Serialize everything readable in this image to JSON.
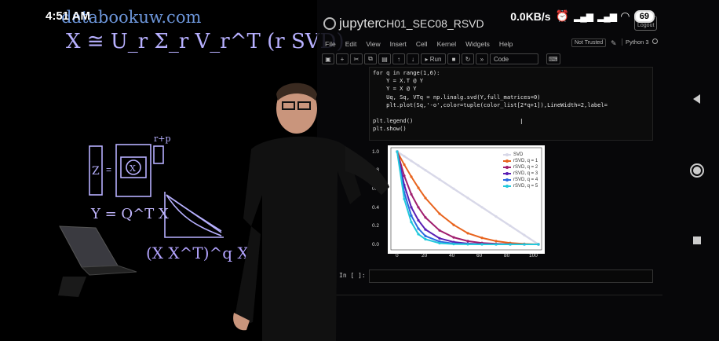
{
  "status_bar": {
    "time": "4:51 AM",
    "speed": "0.0KB/s",
    "battery": "69"
  },
  "lightboard": {
    "url_text": "databookuw.com",
    "svd_equation": "X ≅ U_r Σ_r V_r^T  (r SVD)",
    "qr_equation": "Y = Q^T X",
    "power_text": "(X X^T)^q X",
    "r_plus_p": "r+p"
  },
  "jupyter": {
    "logo_text": "jupyter",
    "notebook_title": "CH01_SEC08_RSVD",
    "logout_label": "Logout",
    "menu": [
      "File",
      "Edit",
      "View",
      "Insert",
      "Cell",
      "Kernel",
      "Widgets",
      "Help"
    ],
    "not_trusted": "Not Trusted",
    "kernel_name": "Python 3",
    "toolbar": {
      "run_label": "Run",
      "cell_type": "Code"
    },
    "empty_prompt": "In [ ]:",
    "code_lines": [
      "for q in range(1,6):",
      "    Y = X.T @ Y",
      "    Y = X @ Y",
      "    Uq, Sq, VTq = np.linalg.svd(Y,full_matrices=0)",
      "    plt.plot(Sq,'-o',color=tuple(color_list[2*q+1]),LineWidth=2,label=",
      "",
      "plt.legend()",
      "plt.show()"
    ]
  },
  "chart_data": {
    "type": "line",
    "xlim": [
      0,
      100
    ],
    "ylim": [
      0,
      1.0
    ],
    "xticks": [
      "0",
      "20",
      "40",
      "60",
      "80",
      "100"
    ],
    "yticks": [
      "0.0",
      "0.2",
      "0.4",
      "0.6",
      "0.8",
      "1.0"
    ],
    "legend_position": "upper-right",
    "x": [
      0,
      5,
      10,
      15,
      20,
      30,
      40,
      50,
      60,
      70,
      80,
      90,
      100
    ],
    "series": [
      {
        "name": "SVD",
        "color": "#d8d8e8",
        "values": [
          1.0,
          0.95,
          0.9,
          0.85,
          0.8,
          0.7,
          0.6,
          0.5,
          0.4,
          0.3,
          0.2,
          0.1,
          0.0
        ]
      },
      {
        "name": "rSVD, q = 1",
        "color": "#e8641e",
        "values": [
          1.0,
          0.86,
          0.73,
          0.61,
          0.5,
          0.33,
          0.21,
          0.12,
          0.07,
          0.035,
          0.015,
          0.005,
          0.0
        ]
      },
      {
        "name": "rSVD, q = 2",
        "color": "#a01e6e",
        "values": [
          1.0,
          0.74,
          0.54,
          0.4,
          0.29,
          0.15,
          0.075,
          0.035,
          0.015,
          0.006,
          0.002,
          0.0005,
          0.0
        ]
      },
      {
        "name": "rSVD, q = 3",
        "color": "#5a1eb4",
        "values": [
          1.0,
          0.64,
          0.4,
          0.26,
          0.16,
          0.065,
          0.025,
          0.009,
          0.003,
          0.001,
          0.0,
          0.0,
          0.0
        ]
      },
      {
        "name": "rSVD, q = 4",
        "color": "#2a6ae0",
        "values": [
          1.0,
          0.56,
          0.31,
          0.17,
          0.09,
          0.03,
          0.009,
          0.003,
          0.001,
          0.0,
          0.0,
          0.0,
          0.0
        ]
      },
      {
        "name": "rSVD, q = 5",
        "color": "#22c8dc",
        "values": [
          1.0,
          0.49,
          0.24,
          0.11,
          0.055,
          0.013,
          0.003,
          0.0007,
          0.0001,
          0.0,
          0.0,
          0.0,
          0.0
        ]
      }
    ]
  }
}
